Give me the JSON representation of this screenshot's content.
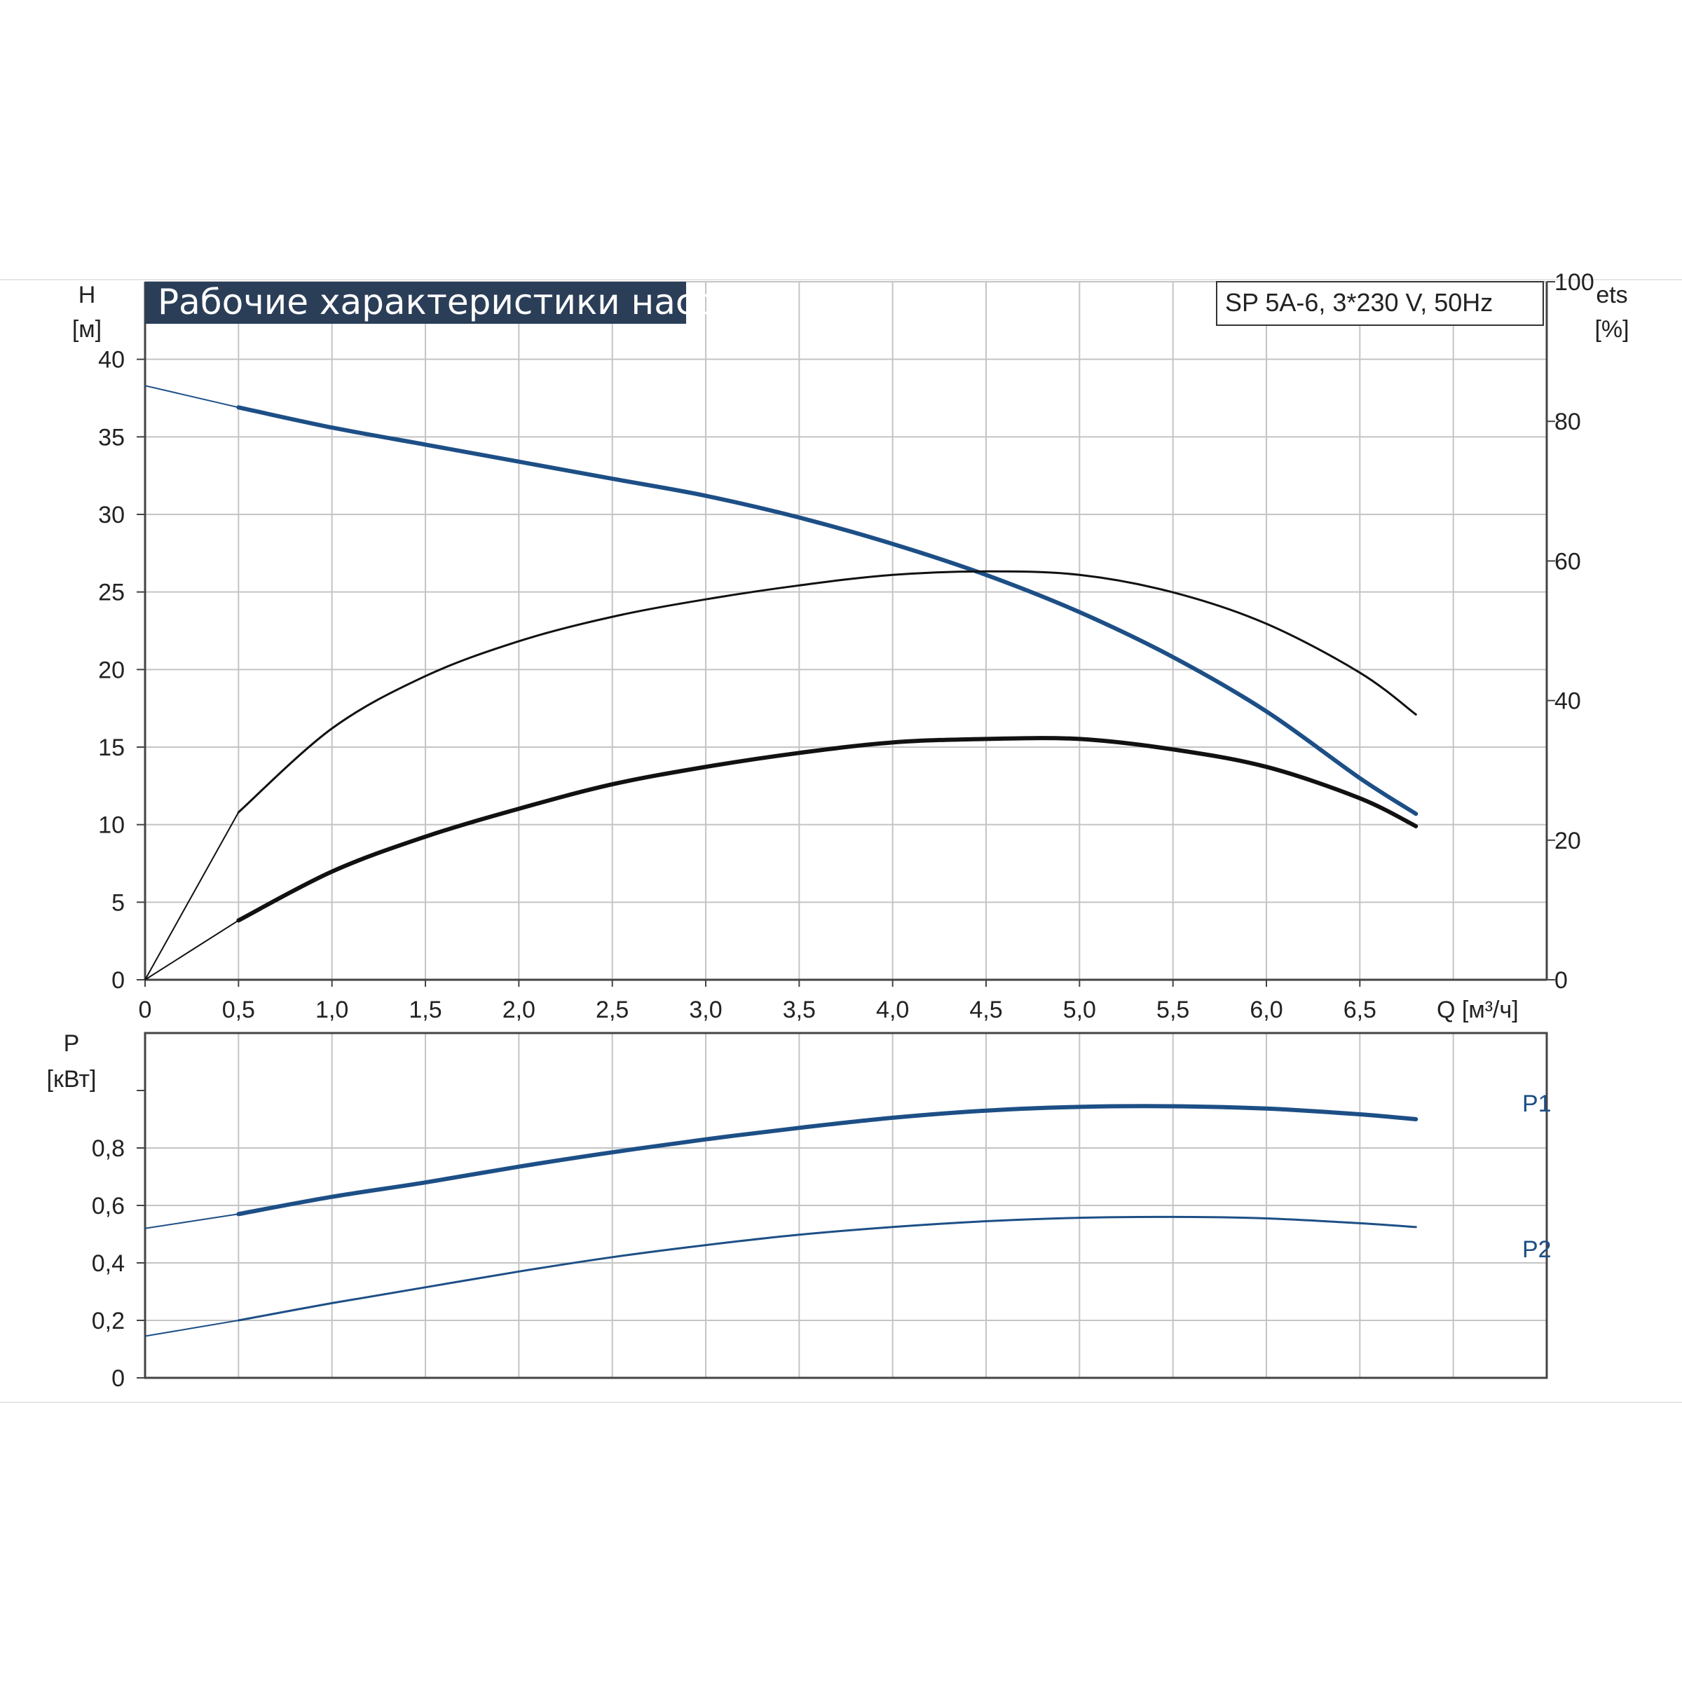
{
  "chart_data": [
    {
      "type": "line",
      "title": "Рабочие характеристики насоса",
      "model_label": "SP 5A-6, 3*230 V, 50Hz",
      "x_axis": {
        "label": "Q [м³/ч]",
        "ticks": [
          "0",
          "0,5",
          "1,0",
          "1,5",
          "2,0",
          "2,5",
          "3,0",
          "3,5",
          "4,0",
          "4,5",
          "5,0",
          "5,5",
          "6,0",
          "6,5"
        ],
        "range": [
          0,
          7.5
        ]
      },
      "y_axis_left": {
        "label_line1": "H",
        "label_line2": "[м]",
        "ticks": [
          "0",
          "5",
          "10",
          "15",
          "20",
          "25",
          "30",
          "35",
          "40"
        ],
        "range": [
          0,
          45
        ]
      },
      "y_axis_right": {
        "label_line1": "ets",
        "label_line2": "[%]",
        "ticks": [
          "0",
          "20",
          "40",
          "60",
          "80",
          "100"
        ],
        "range": [
          0,
          100
        ]
      },
      "grid": true,
      "series": [
        {
          "axis": "left",
          "color": "#1d4f86",
          "style": "thick",
          "x": [
            0,
            0.5,
            1.0,
            1.5,
            2.0,
            2.5,
            3.0,
            3.5,
            4.0,
            4.5,
            5.0,
            5.5,
            6.0,
            6.5,
            6.8
          ],
          "y": [
            38.3,
            36.9,
            35.6,
            34.5,
            33.4,
            32.3,
            31.2,
            29.8,
            28.1,
            26.1,
            23.7,
            20.8,
            17.3,
            13.0,
            10.7
          ]
        },
        {
          "axis": "right",
          "color": "#111111",
          "style": "thin",
          "x": [
            0,
            0.5,
            1.0,
            1.5,
            2.0,
            2.5,
            3.0,
            3.5,
            4.0,
            4.5,
            5.0,
            5.5,
            6.0,
            6.5,
            6.8
          ],
          "y": [
            0,
            24,
            36,
            43.5,
            48.5,
            52,
            54.5,
            56.5,
            58,
            58.5,
            58,
            55.5,
            51,
            44,
            38
          ]
        },
        {
          "axis": "right",
          "color": "#111111",
          "style": "thick",
          "x": [
            0,
            0.5,
            1.0,
            1.5,
            2.0,
            2.5,
            3.0,
            3.5,
            4.0,
            4.5,
            5.0,
            5.5,
            6.0,
            6.5,
            6.8
          ],
          "y": [
            0,
            8.5,
            15.5,
            20.5,
            24.5,
            28,
            30.5,
            32.5,
            34,
            34.5,
            34.5,
            33,
            30.5,
            26,
            22
          ]
        }
      ]
    },
    {
      "type": "line",
      "y_axis": {
        "label_line1": "P",
        "label_line2": "[кВт]",
        "ticks": [
          "0",
          "0,2",
          "0,4",
          "0,6",
          "0,8"
        ],
        "range": [
          0,
          1.2
        ]
      },
      "x_range": [
        0,
        7.5
      ],
      "grid": true,
      "series": [
        {
          "name": "P1",
          "color": "#1d4f86",
          "style": "thick",
          "x": [
            0,
            0.5,
            1.0,
            1.5,
            2.0,
            2.5,
            3.0,
            3.5,
            4.0,
            4.5,
            5.0,
            5.5,
            6.0,
            6.5,
            6.8
          ],
          "y": [
            0.52,
            0.57,
            0.63,
            0.68,
            0.735,
            0.785,
            0.83,
            0.87,
            0.905,
            0.93,
            0.943,
            0.945,
            0.937,
            0.917,
            0.9
          ]
        },
        {
          "name": "P2",
          "color": "#1d4f86",
          "style": "thin",
          "x": [
            0,
            0.5,
            1.0,
            1.5,
            2.0,
            2.5,
            3.0,
            3.5,
            4.0,
            4.5,
            5.0,
            5.5,
            6.0,
            6.5,
            6.8
          ],
          "y": [
            0.145,
            0.2,
            0.26,
            0.315,
            0.37,
            0.42,
            0.462,
            0.498,
            0.525,
            0.545,
            0.557,
            0.56,
            0.555,
            0.538,
            0.525
          ]
        }
      ]
    }
  ]
}
